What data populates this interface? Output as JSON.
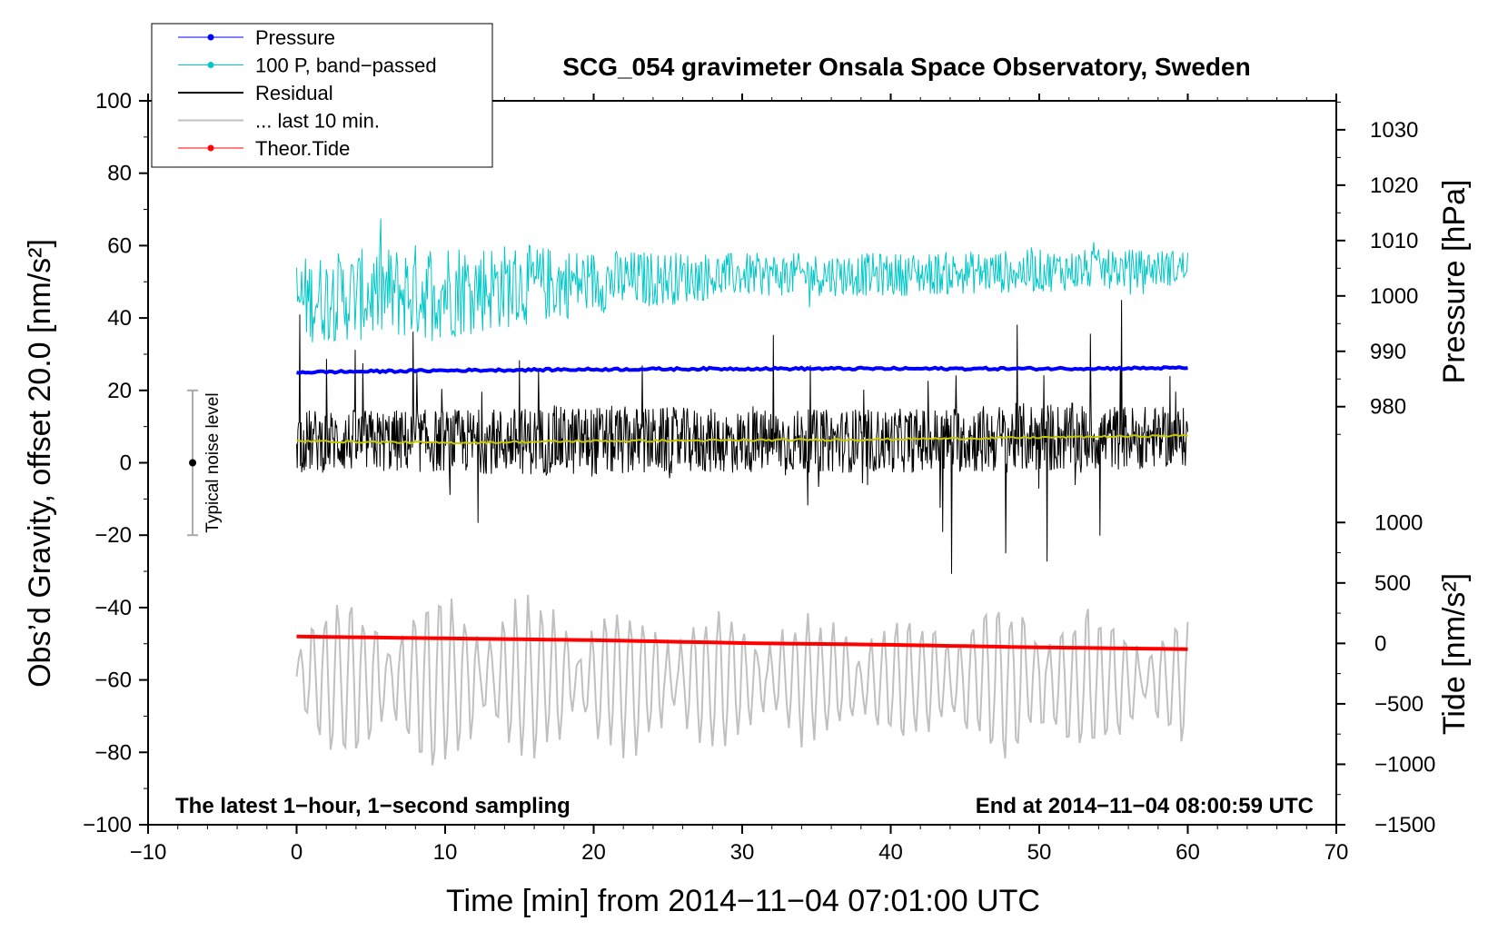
{
  "chart_data": {
    "type": "line",
    "title": "SCG_054 gravimeter Onsala Space Observatory, Sweden",
    "xlabel": "Time [min] from 2014−11−04 07:01:00 UTC",
    "ylabel_left": "Obs’d Gravity, offset 20.0 [nm/s²]",
    "ylabel_pressure": "Pressure [hPa]",
    "ylabel_tide": "Tide [nm/s²]",
    "xlim": [
      -10,
      70
    ],
    "ylim": [
      -100,
      100
    ],
    "x_ticks": [
      "−10",
      "0",
      "10",
      "20",
      "30",
      "40",
      "50",
      "60",
      "70"
    ],
    "y_ticks": [
      "100",
      "80",
      "60",
      "40",
      "20",
      "0",
      "−20",
      "−40",
      "−60",
      "−80",
      "−100"
    ],
    "pressure_axis": {
      "range": [
        975,
        1035
      ],
      "ticks": [
        "1030",
        "1020",
        "1010",
        "1000",
        "990",
        "980"
      ]
    },
    "tide_axis": {
      "range": [
        -1500,
        1000
      ],
      "ticks": [
        "1000",
        "500",
        "0",
        "−500",
        "−1000",
        "−1500"
      ]
    },
    "legend": [
      {
        "label": "Pressure",
        "color": "#0000ff",
        "marker": true
      },
      {
        "label": "100 P, band−passed",
        "color": "#00c8c8",
        "marker": true
      },
      {
        "label": "Residual",
        "color": "#000000",
        "marker": false
      },
      {
        "label": "... last 10 min.",
        "color": "#c0c0c0",
        "marker": false
      },
      {
        "label": "Theor.Tide",
        "color": "#ff0000",
        "marker": true
      }
    ],
    "series": [
      {
        "name": "Pressure",
        "color": "#0000ff",
        "x": [
          0,
          10,
          20,
          30,
          40,
          50,
          60
        ],
        "values": [
          25,
          25.5,
          25.8,
          26,
          26,
          26,
          26.2
        ]
      },
      {
        "name": "100 P, band-passed",
        "color": "#00c8c8",
        "x": [
          0,
          10,
          20,
          30,
          40,
          50,
          60
        ],
        "values": [
          45,
          48,
          50,
          52,
          52,
          53,
          54
        ],
        "amplitude": [
          12,
          14,
          9,
          6,
          6,
          6,
          5
        ]
      },
      {
        "name": "Residual",
        "color": "#000000",
        "x": [
          0,
          10,
          20,
          30,
          40,
          50,
          60
        ],
        "values": [
          6,
          6,
          6,
          6,
          6,
          7,
          7
        ],
        "amplitude": [
          16,
          16,
          18,
          16,
          16,
          18,
          15
        ]
      },
      {
        "name": "Residual smoothed",
        "color": "#c8c800",
        "x": [
          0,
          10,
          20,
          30,
          40,
          50,
          60
        ],
        "values": [
          6,
          5.5,
          6,
          6.2,
          6.5,
          7,
          7.5
        ]
      },
      {
        "name": "... last 10 min.",
        "color": "#c0c0c0",
        "x": [
          0,
          10,
          20,
          30,
          40,
          50,
          60
        ],
        "values": [
          -60,
          -60,
          -60,
          -60,
          -60,
          -60,
          -60
        ],
        "amplitude": [
          20,
          24,
          20,
          18,
          16,
          22,
          16
        ]
      },
      {
        "name": "Theor.Tide",
        "color": "#ff0000",
        "x": [
          0,
          10,
          20,
          30,
          40,
          50,
          60
        ],
        "values": [
          -48,
          -48.5,
          -49,
          -49.8,
          -50.3,
          -51,
          -51.5
        ]
      }
    ],
    "noise_bar": {
      "x": -7,
      "low": -20,
      "high": 20,
      "center": 0,
      "label": "Typical noise level"
    },
    "annotations": {
      "bottom_left": "The latest 1−hour, 1−second sampling",
      "bottom_right": "End at 2014−11−04 08:00:59 UTC"
    }
  }
}
